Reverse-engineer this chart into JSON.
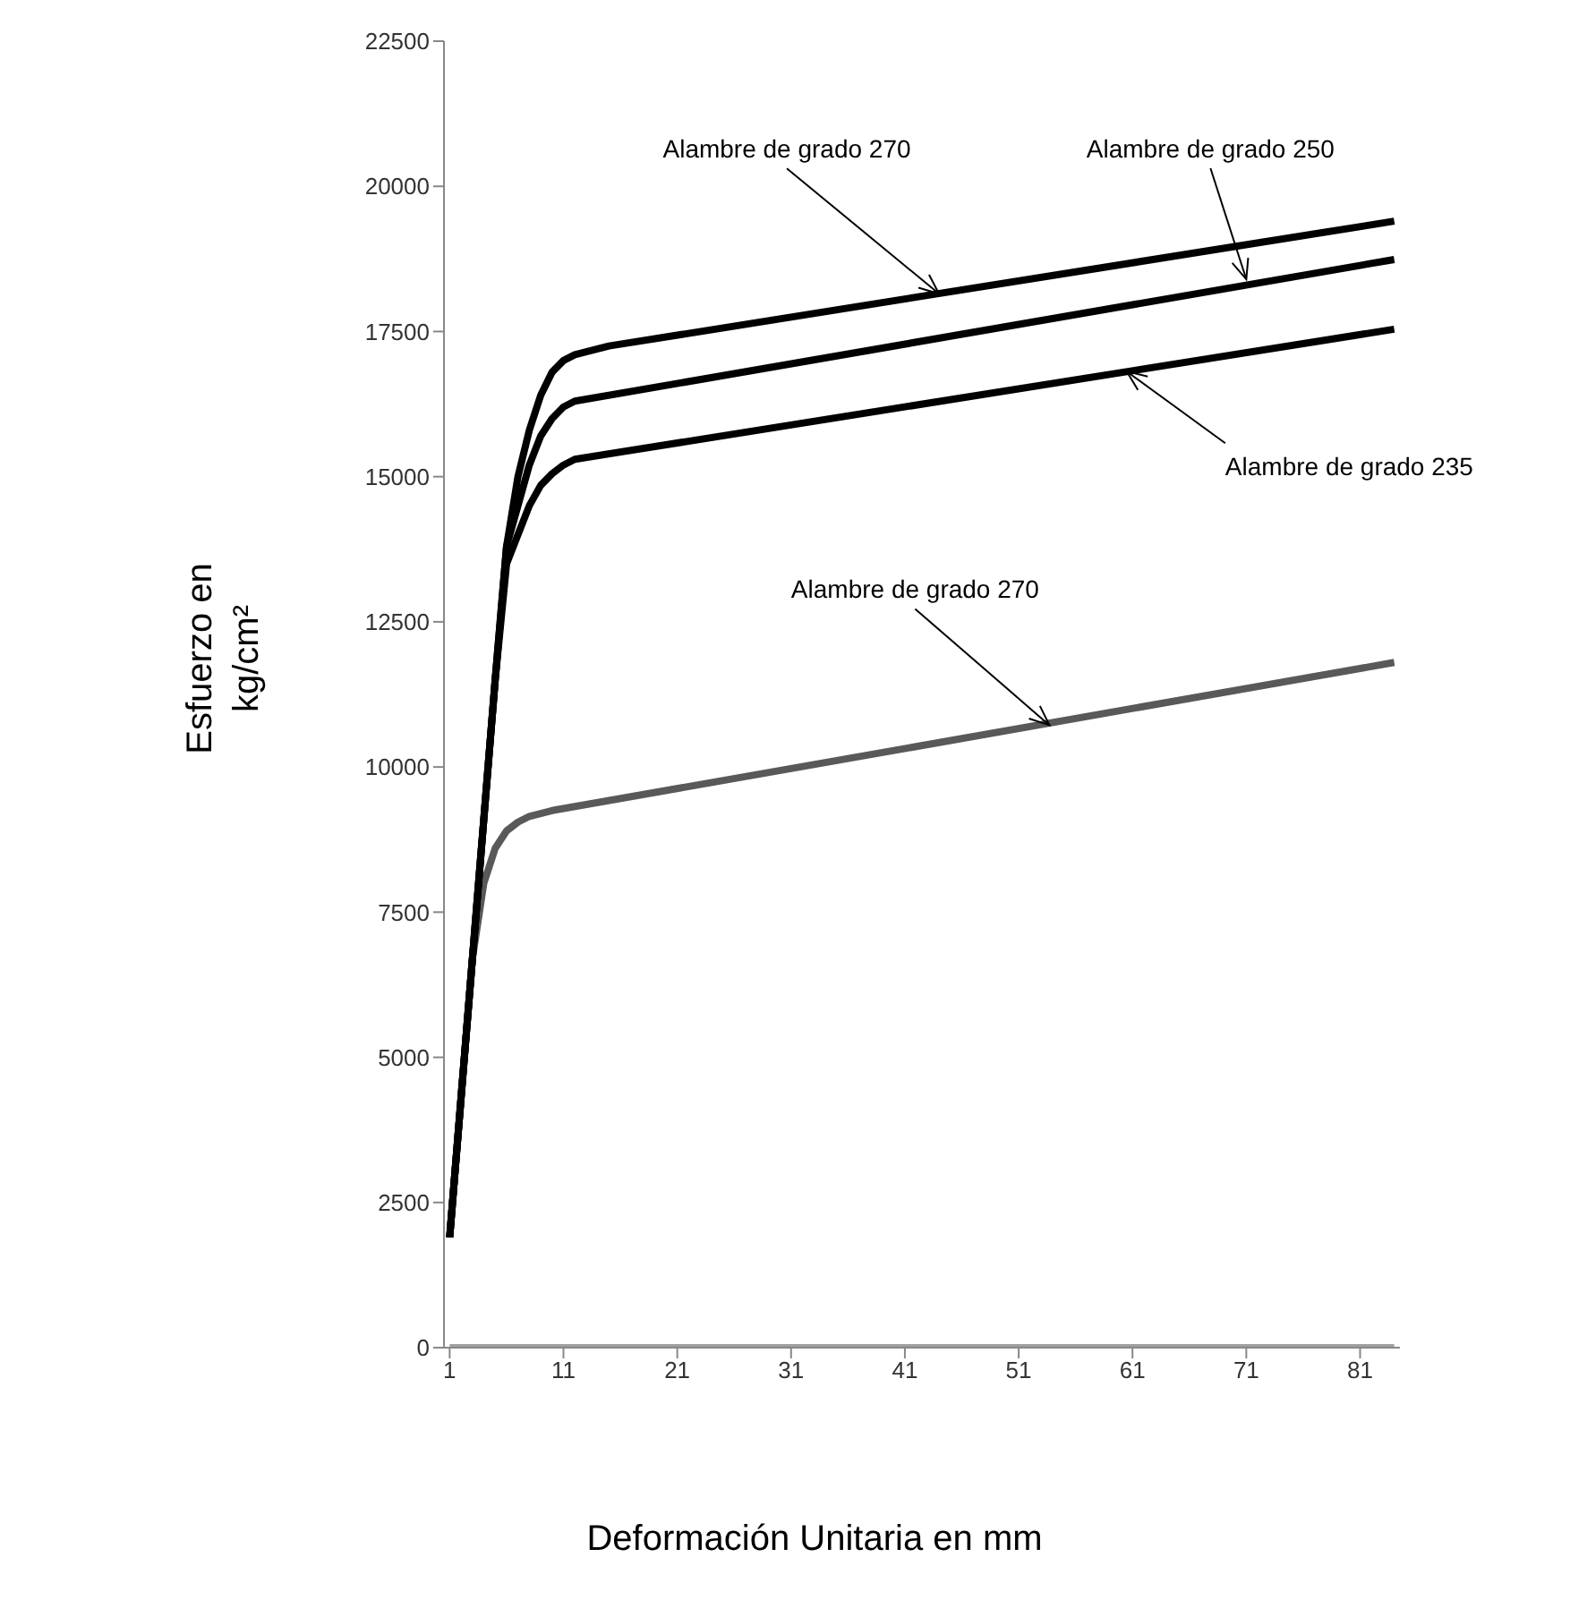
{
  "chart_data": {
    "type": "line",
    "xlabel": "Deformación Unitaria en mm",
    "ylabel": "Esfuerzo en kg/cm²",
    "xlim": [
      0.5,
      84.5
    ],
    "xticks": [
      1,
      11,
      21,
      31,
      41,
      51,
      61,
      71,
      81
    ],
    "ylim": [
      0,
      22500
    ],
    "yticks": [
      0,
      2500,
      5000,
      7500,
      10000,
      12500,
      15000,
      17500,
      20000,
      22500
    ],
    "marker": "none",
    "line_style": "solid",
    "series": [
      {
        "color": "#a0a0a0",
        "x": [
          1,
          84
        ],
        "values": [
          0,
          0
        ]
      },
      {
        "color": "#595959",
        "x": [
          1,
          2,
          3,
          4,
          5,
          6,
          7,
          8,
          10,
          84
        ],
        "values": [
          1900,
          4300,
          6700,
          8000,
          8600,
          8900,
          9050,
          9150,
          9250,
          11800
        ]
      },
      {
        "color": "#000000",
        "x": [
          1,
          2,
          3,
          4,
          5,
          6,
          7,
          8,
          9,
          10,
          11,
          12,
          84
        ],
        "values": [
          1900,
          4300,
          6700,
          9100,
          11500,
          13500,
          14000,
          14500,
          14850,
          15050,
          15200,
          15300,
          17540
        ]
      },
      {
        "color": "#000000",
        "x": [
          1,
          2,
          3,
          4,
          5,
          6,
          7,
          8,
          9,
          10,
          11,
          12,
          84
        ],
        "values": [
          1900,
          4300,
          6700,
          9100,
          11500,
          13800,
          14500,
          15200,
          15700,
          16000,
          16200,
          16300,
          18740
        ]
      },
      {
        "color": "#000000",
        "x": [
          1,
          2,
          3,
          4,
          5,
          6,
          7,
          8,
          9,
          10,
          11,
          12,
          15,
          84
        ],
        "values": [
          1900,
          4300,
          6700,
          9100,
          11500,
          13800,
          15000,
          15800,
          16400,
          16800,
          17000,
          17100,
          17250,
          19400
        ]
      }
    ],
    "annotations": [
      {
        "text": "Alambre de grado 270",
        "x": 44,
        "y": 18150
      },
      {
        "text": "Alambre de grado 250",
        "x": 71,
        "y": 18400
      },
      {
        "text": "Alambre de grado 235",
        "x": 60.5,
        "y": 16810
      },
      {
        "text": "Alambre de grado 270",
        "x": 53.7,
        "y": 10720
      }
    ]
  }
}
